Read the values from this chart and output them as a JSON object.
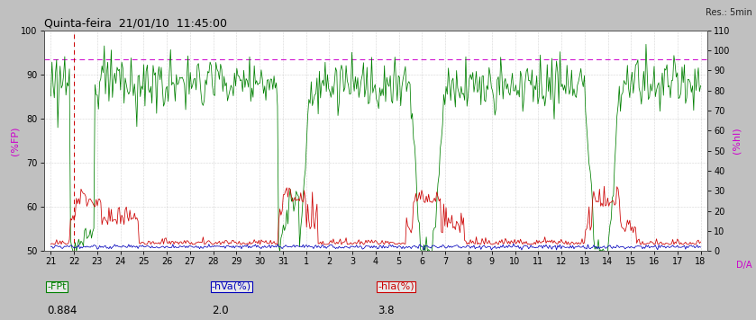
{
  "title": "Quinta-feira  21/01/10  11:45:00",
  "res_label": "Res.: 5min",
  "ylabel_left": "(%FP)",
  "ylabel_right": "(%hl)",
  "xlabel_right": "D/A",
  "ylim_left": [
    50,
    100
  ],
  "ylim_right": [
    0,
    110
  ],
  "yticks_left": [
    50,
    60,
    70,
    80,
    90,
    100
  ],
  "yticks_right": [
    0,
    10,
    20,
    30,
    40,
    50,
    60,
    70,
    80,
    90,
    100,
    110
  ],
  "xtick_labels": [
    "21",
    "22",
    "23",
    "24",
    "25",
    "26",
    "27",
    "28",
    "29",
    "30",
    "31",
    "1",
    "2",
    "3",
    "4",
    "5",
    "6",
    "7",
    "8",
    "9",
    "10",
    "11",
    "12",
    "13",
    "14",
    "15",
    "16",
    "17",
    "18"
  ],
  "hline_y": 93.5,
  "hline_color": "#cc00cc",
  "vline_color": "#cc0000",
  "bg_color": "#c0c0c0",
  "plot_bg_color": "#ffffff",
  "grid_color": "#b0b0b0",
  "green_color": "#008000",
  "blue_color": "#0000bb",
  "red_color": "#cc0000",
  "legend_items": [
    {
      "label": "-FPt",
      "color": "#008000",
      "value": "0.884"
    },
    {
      "label": "-hVa(%)",
      "color": "#0000bb",
      "value": "2.0"
    },
    {
      "label": "-hIa(%)",
      "color": "#cc0000",
      "value": "3.8"
    }
  ],
  "title_fontsize": 9,
  "axis_fontsize": 8,
  "tick_fontsize": 7
}
